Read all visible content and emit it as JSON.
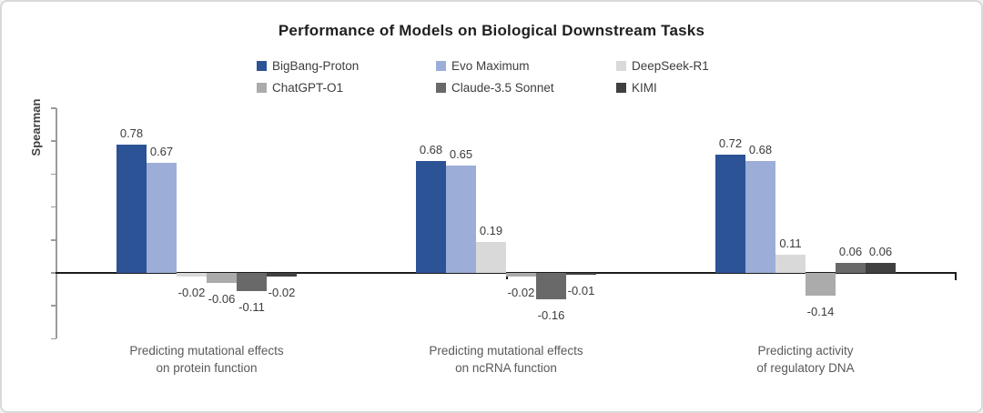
{
  "chart_data": {
    "type": "bar",
    "title": "Performance of Models on Biological Downstream Tasks",
    "ylabel": "Spearman",
    "xlabel": "",
    "categories": [
      {
        "label": "Predicting mutational effects on protein function",
        "lines": [
          "Predicting mutational effects",
          "on protein function"
        ]
      },
      {
        "label": "Predicting mutational effects on ncRNA function",
        "lines": [
          "Predicting mutational effects",
          "on ncRNA function"
        ]
      },
      {
        "label": "Predicting activity of regulatory DNA",
        "lines": [
          "Predicting activity",
          "of regulatory DNA"
        ]
      }
    ],
    "series": [
      {
        "name": "BigBang-Proton",
        "color": "#2B5395",
        "values": [
          0.78,
          0.68,
          0.72
        ]
      },
      {
        "name": "Evo Maximum",
        "color": "#9CADD8",
        "values": [
          0.67,
          0.65,
          0.68
        ]
      },
      {
        "name": "DeepSeek-R1",
        "color": "#D9D9D9",
        "values": [
          -0.02,
          0.19,
          0.11
        ]
      },
      {
        "name": "ChatGPT-O1",
        "color": "#ABABAB",
        "values": [
          -0.06,
          -0.02,
          -0.14
        ]
      },
      {
        "name": "Claude-3.5 Sonnet",
        "color": "#696969",
        "values": [
          -0.11,
          -0.16,
          0.06
        ]
      },
      {
        "name": "KIMI",
        "color": "#404040",
        "values": [
          -0.02,
          -0.01,
          0.06
        ]
      }
    ],
    "ylim": [
      -0.4,
      1.0
    ],
    "ytick_step": 0.2,
    "ytick_labels_shown": false,
    "grid": false,
    "legend_position": "top",
    "value_labels": "outside-end",
    "value_label_decimals": 2,
    "axis_color": "#1c1c1c",
    "y_axis_color": "#9b9b9b"
  }
}
